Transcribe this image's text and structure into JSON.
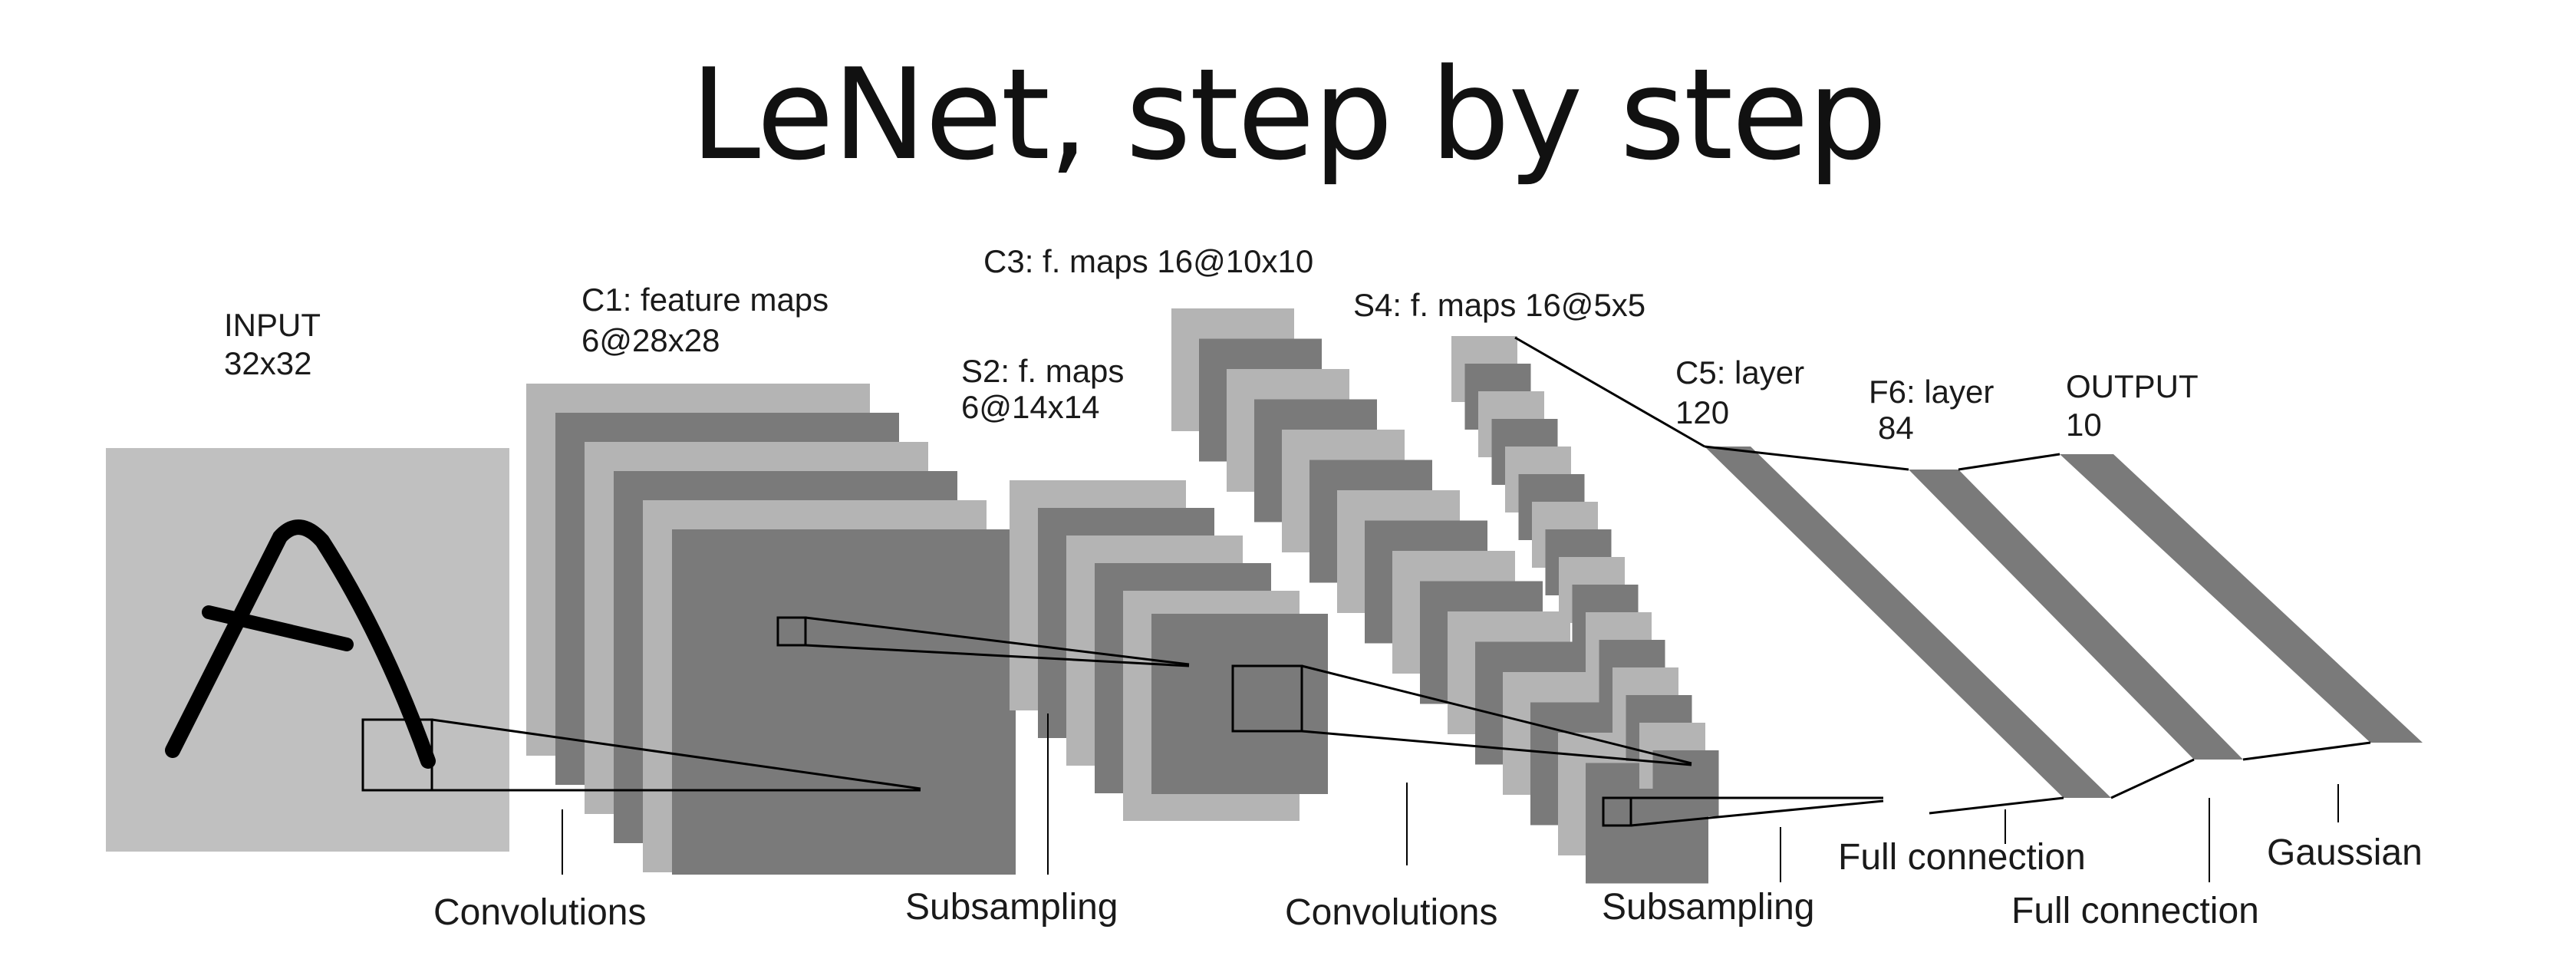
{
  "title": "LeNet, step by step",
  "colors": {
    "light": "#b4b4b4",
    "dark": "#7a7a7a",
    "input_bg": "#c0c0c0",
    "stroke": "#000000"
  },
  "layers": {
    "input": {
      "name": "INPUT",
      "size": "32x32"
    },
    "c1": {
      "name": "C1: feature maps",
      "size": "6@28x28"
    },
    "s2": {
      "name": "S2: f. maps",
      "size": "6@14x14"
    },
    "c3": {
      "name": "C3: f. maps 16@10x10"
    },
    "s4": {
      "name": "S4: f. maps 16@5x5"
    },
    "c5": {
      "name": "C5: layer",
      "size": "120"
    },
    "f6": {
      "name": "F6: layer",
      "size": "84"
    },
    "output": {
      "name": "OUTPUT",
      "size": "10"
    }
  },
  "operations": {
    "conv1": "Convolutions",
    "sub1": "Subsampling",
    "conv2": "Convolutions",
    "sub2": "Subsampling",
    "full1": "Full connection",
    "full2": "Full connection",
    "gaussian": "Gaussian"
  }
}
